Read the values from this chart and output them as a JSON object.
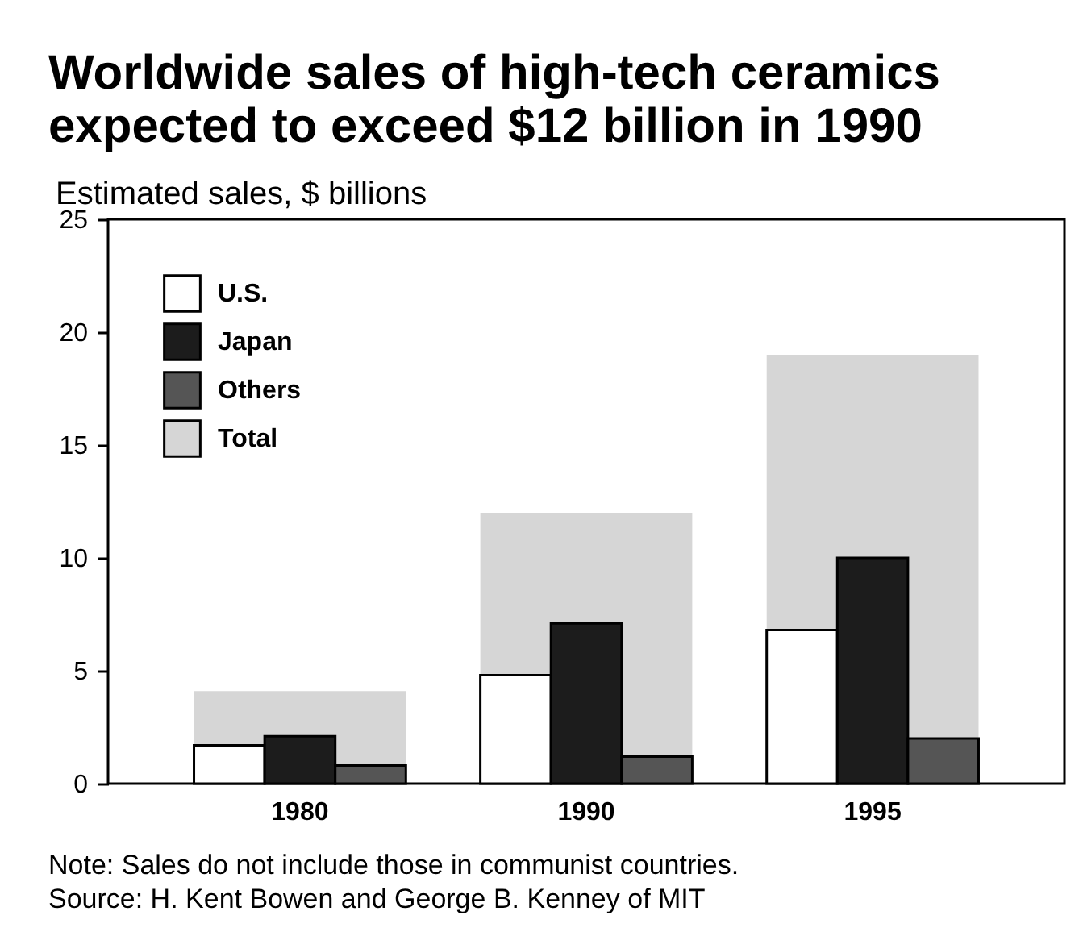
{
  "chart_data": {
    "type": "bar",
    "title": "Worldwide sales of high-tech ceramics expected to exceed $12 billion in 1990",
    "ylabel": "Estimated sales, $ billions",
    "categories": [
      "1980",
      "1990",
      "1995"
    ],
    "series": [
      {
        "name": "U.S.",
        "color": "#ffffff",
        "values": [
          1.7,
          4.8,
          6.8
        ]
      },
      {
        "name": "Japan",
        "color": "#1c1c1c",
        "values": [
          2.1,
          7.1,
          10.0
        ]
      },
      {
        "name": "Others",
        "color": "#555555",
        "values": [
          0.8,
          1.2,
          2.0
        ]
      },
      {
        "name": "Total",
        "color": "#d6d6d6",
        "values": [
          4.1,
          12.0,
          19.0
        ]
      }
    ],
    "ylim": [
      0,
      25
    ],
    "yticks": [
      0,
      5,
      10,
      15,
      20,
      25
    ],
    "grid": false,
    "legend": "top left",
    "annotations": [
      "Note: Sales do not include those in communist countries.",
      "Source: H. Kent Bowen and George B. Kenney of MIT"
    ]
  }
}
